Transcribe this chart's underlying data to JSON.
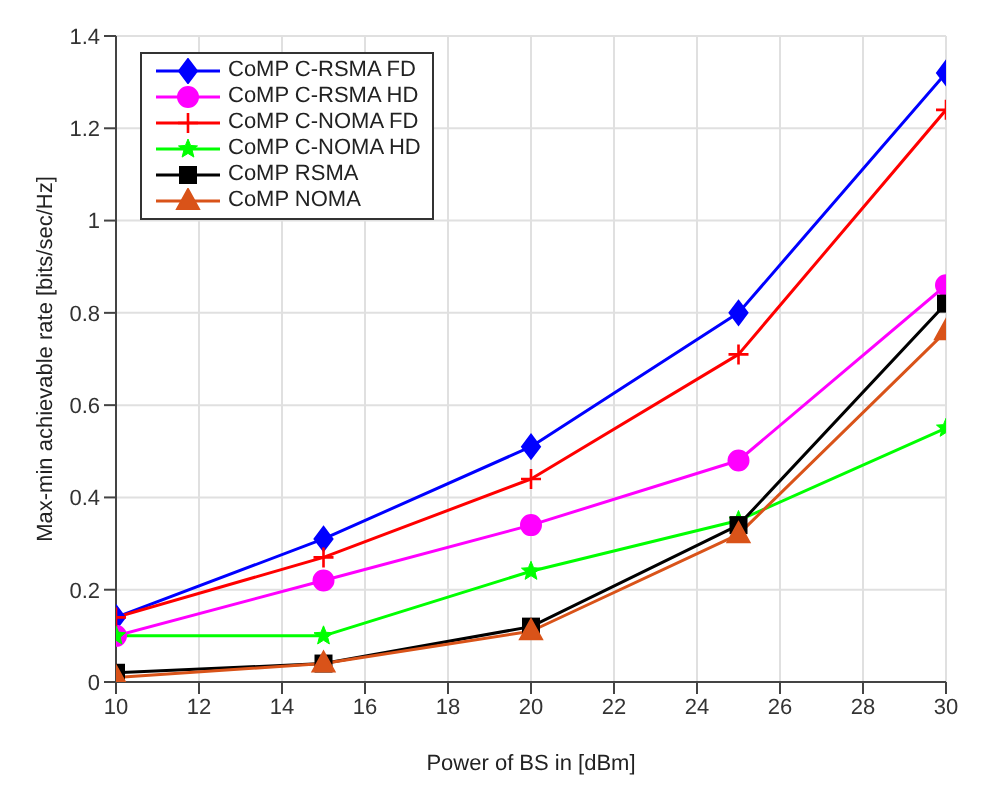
{
  "chart_data": {
    "type": "line",
    "xlabel": "Power of BS in [dBm]",
    "ylabel": "Max-min achievable rate [bits/sec/Hz]",
    "x": [
      10,
      15,
      20,
      25,
      30
    ],
    "series": [
      {
        "name": "CoMP C-RSMA FD",
        "color": "#0000ff",
        "marker": "diamond",
        "values": [
          0.14,
          0.31,
          0.51,
          0.8,
          1.32
        ]
      },
      {
        "name": "CoMP C-RSMA HD",
        "color": "#ff00ff",
        "marker": "circle",
        "values": [
          0.1,
          0.22,
          0.34,
          0.48,
          0.86
        ]
      },
      {
        "name": "CoMP C-NOMA FD",
        "color": "#ff0000",
        "marker": "cross",
        "values": [
          0.14,
          0.27,
          0.44,
          0.71,
          1.24
        ]
      },
      {
        "name": "CoMP C-NOMA HD",
        "color": "#00ff00",
        "marker": "star",
        "values": [
          0.1,
          0.1,
          0.24,
          0.35,
          0.55
        ]
      },
      {
        "name": "CoMP RSMA",
        "color": "#000000",
        "marker": "square",
        "values": [
          0.02,
          0.04,
          0.12,
          0.34,
          0.82
        ]
      },
      {
        "name": "CoMP NOMA",
        "color": "#d95319",
        "marker": "triangle",
        "values": [
          0.01,
          0.04,
          0.11,
          0.32,
          0.76
        ]
      }
    ],
    "xlim": [
      10,
      30
    ],
    "xticks": [
      10,
      12,
      14,
      16,
      18,
      20,
      22,
      24,
      26,
      28,
      30
    ],
    "ylim": [
      0,
      1.4
    ],
    "yticks": [
      0,
      0.2,
      0.4,
      0.6,
      0.8,
      1,
      1.2,
      1.4
    ],
    "grid": true,
    "legend": "top left",
    "line_style": "solid"
  }
}
